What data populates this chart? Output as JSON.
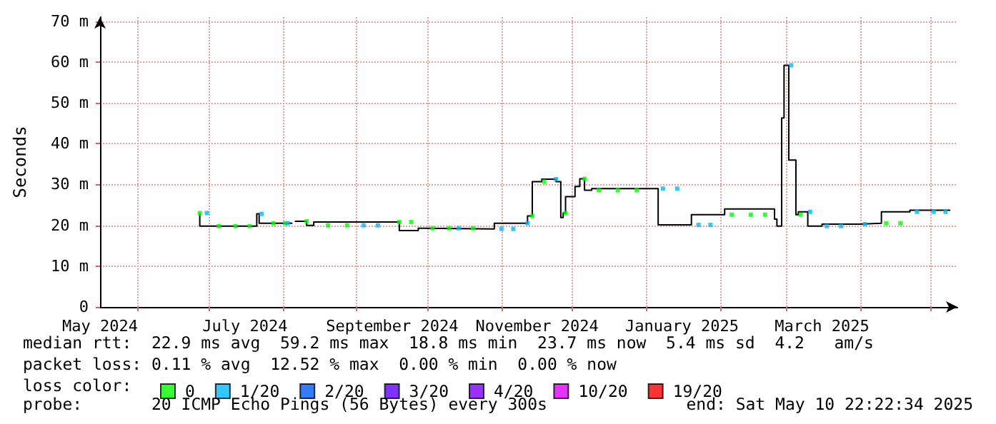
{
  "chart_data": {
    "type": "step",
    "ylabel": "Seconds",
    "legend_title": "loss color:",
    "legend": "bottom",
    "grid": true,
    "line_style": "solid",
    "xlim": [
      "2024-05-16",
      "2025-05-12"
    ],
    "xticks": [
      {
        "value": "2024-05-16",
        "label": "May 2024"
      },
      {
        "value": "2024-06-01",
        "label": null
      },
      {
        "value": "2024-07-01",
        "label": null
      },
      {
        "value": "2024-07-16",
        "label": "July 2024"
      },
      {
        "value": "2024-08-01",
        "label": null
      },
      {
        "value": "2024-09-01",
        "label": null
      },
      {
        "value": "2024-09-16",
        "label": "September 2024"
      },
      {
        "value": "2024-10-01",
        "label": null
      },
      {
        "value": "2024-11-01",
        "label": null
      },
      {
        "value": "2024-11-16",
        "label": "November 2024"
      },
      {
        "value": "2024-12-01",
        "label": null
      },
      {
        "value": "2025-01-01",
        "label": null
      },
      {
        "value": "2025-01-16",
        "label": "January 2025"
      },
      {
        "value": "2025-02-01",
        "label": null
      },
      {
        "value": "2025-03-01",
        "label": null
      },
      {
        "value": "2025-03-16",
        "label": "March 2025"
      },
      {
        "value": "2025-04-01",
        "label": null
      },
      {
        "value": "2025-05-01",
        "label": null
      }
    ],
    "ylim": [
      0,
      71
    ],
    "yticks": [
      0,
      {
        "value": 10,
        "label": "10 m"
      },
      {
        "value": 20,
        "label": "20 m"
      },
      {
        "value": 30,
        "label": "30 m"
      },
      {
        "value": 40,
        "label": "40 m"
      },
      {
        "value": 50,
        "label": "50 m"
      },
      {
        "value": 60,
        "label": "60 m"
      },
      {
        "value": 70,
        "label": "70 m"
      }
    ],
    "series": [
      {
        "color": "#000000",
        "x": [
          "2024-06-27",
          "2024-07-02",
          "2024-07-21",
          "2024-07-22",
          "2024-07-26",
          "2024-08-05",
          "2024-08-06",
          "2024-08-11",
          "2024-08-14",
          "2024-09-19",
          "2024-09-27",
          "2024-09-29",
          "2024-10-29",
          "2024-11-12",
          "2024-11-14",
          "2024-11-18",
          "2024-11-24",
          "2024-11-26",
          "2024-11-27",
          "2024-11-28",
          "2024-12-02",
          "2024-12-04",
          "2024-12-06",
          "2024-12-09",
          "2025-01-06",
          "2025-01-20",
          "2025-02-03",
          "2025-02-24",
          "2025-02-25",
          "2025-02-27",
          "2025-02-28",
          "2025-03-02",
          "2025-03-05",
          "2025-03-06",
          "2025-03-10",
          "2025-03-16",
          "2025-04-01",
          "2025-04-10",
          "2025-04-22",
          "2025-05-09"
        ],
        "values": [
          23.0,
          19.8,
          19.8,
          22.8,
          20.5,
          20.5,
          null,
          21.0,
          20.0,
          20.8,
          18.7,
          19.3,
          19.1,
          20.5,
          22.3,
          30.7,
          31.3,
          30.7,
          21.9,
          23.0,
          27.0,
          29.5,
          31.4,
          28.6,
          29.0,
          20.1,
          22.6,
          24.0,
          21.5,
          19.8,
          46.3,
          59.2,
          36.0,
          22.6,
          23.3,
          19.8,
          20.3,
          20.5,
          23.3,
          23.7
        ]
      },
      {
        "type": "scatter",
        "marker": "square",
        "name": "0",
        "color": "#00ff00",
        "x": [
          "2024-06-27",
          "2024-07-05",
          "2024-07-12",
          "2024-07-18",
          "2024-07-28",
          "2024-08-02",
          "2024-08-11",
          "2024-08-20",
          "2024-08-28",
          "2024-09-19",
          "2024-09-24",
          "2024-10-03",
          "2024-10-10",
          "2024-10-20",
          "2024-11-14",
          "2024-11-19",
          "2024-11-28",
          "2024-12-06",
          "2024-12-12",
          "2024-12-20",
          "2024-12-28",
          "2025-02-06",
          "2025-02-14",
          "2025-02-20",
          "2025-03-07",
          "2025-04-12",
          "2025-04-18"
        ],
        "values": [
          23.0,
          19.8,
          19.8,
          19.8,
          20.5,
          20.5,
          21.0,
          20.0,
          20.0,
          20.8,
          20.8,
          19.3,
          19.3,
          19.3,
          22.3,
          30.7,
          23.0,
          31.4,
          28.6,
          28.6,
          28.6,
          22.6,
          22.6,
          22.6,
          22.6,
          20.5,
          20.5
        ]
      },
      {
        "type": "scatter",
        "marker": "square",
        "name": "1/20",
        "color": "#00b8ff",
        "x": [
          "2024-06-30",
          "2024-07-23",
          "2024-08-03",
          "2024-09-04",
          "2024-09-10",
          "2024-10-14",
          "2024-11-01",
          "2024-11-06",
          "2024-11-12",
          "2024-11-24",
          "2025-01-08",
          "2025-01-14",
          "2025-01-23",
          "2025-01-28",
          "2025-03-03",
          "2025-03-11",
          "2025-03-18",
          "2025-03-24",
          "2025-04-03",
          "2025-04-25",
          "2025-05-02",
          "2025-05-07"
        ],
        "values": [
          23.0,
          22.8,
          20.5,
          20.0,
          20.0,
          19.3,
          19.1,
          19.1,
          20.5,
          31.3,
          29.0,
          29.0,
          20.1,
          20.1,
          59.2,
          23.3,
          19.8,
          19.8,
          20.3,
          23.3,
          23.3,
          23.3
        ]
      },
      {
        "type": "scatter",
        "name": "2/20",
        "color": "#0059ff"
      },
      {
        "type": "scatter",
        "name": "3/20",
        "color": "#5e00ff"
      },
      {
        "type": "scatter",
        "name": "4/20",
        "color": "#7e00ff"
      },
      {
        "type": "scatter",
        "name": "10/20",
        "color": "#dd00ff"
      },
      {
        "type": "scatter",
        "name": "19/20",
        "color": "#ff0000"
      }
    ],
    "annotations": [
      "median rtt:  22.9 ms avg  59.2 ms max  18.8 ms min  23.7 ms now  5.4 ms sd  4.2   am/s",
      "packet loss: 0.11 % avg  12.52 % max  0.00 % min  0.00 % now",
      "probe:       20 ICMP Echo Pings (56 Bytes) every 300s",
      "end: Sat May 10 22:22:34 2025"
    ]
  }
}
